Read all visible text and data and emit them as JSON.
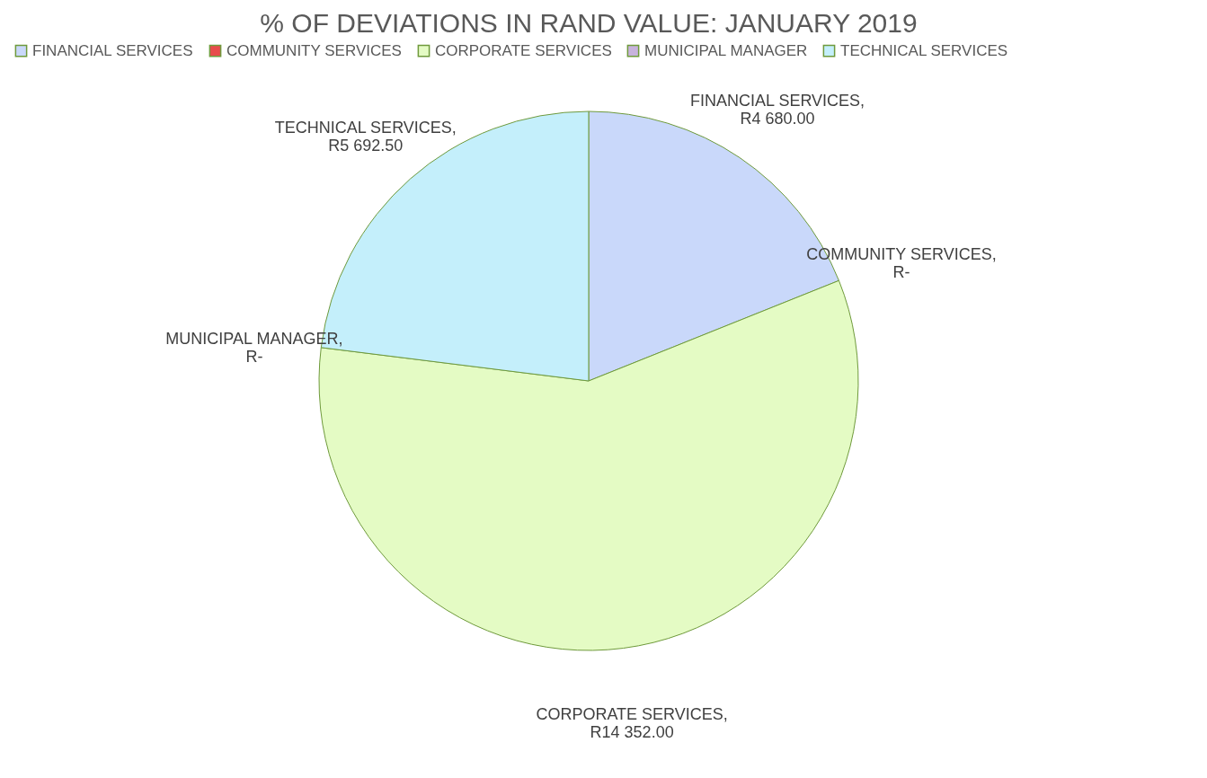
{
  "chart_data": {
    "type": "pie",
    "title": "% OF DEVIATIONS IN RAND VALUE:  JANUARY 2019",
    "categories": [
      "FINANCIAL SERVICES",
      "COMMUNITY SERVICES",
      "CORPORATE SERVICES",
      "MUNICIPAL MANAGER",
      "TECHNICAL SERVICES"
    ],
    "values": [
      4680,
      0,
      14352,
      0,
      5692.5
    ],
    "value_labels": [
      "FINANCIAL SERVICES,  R4 680.00",
      "COMMUNITY SERVICES, R-",
      "CORPORATE SERVICES, R14 352.00",
      "MUNICIPAL MANAGER, R-",
      "TECHNICAL SERVICES,  R5 692.50"
    ],
    "colors": [
      "#c9d8fa",
      "#e84c4c",
      "#e4fbc4",
      "#c7b3dc",
      "#c4effb"
    ],
    "legend": "top"
  }
}
